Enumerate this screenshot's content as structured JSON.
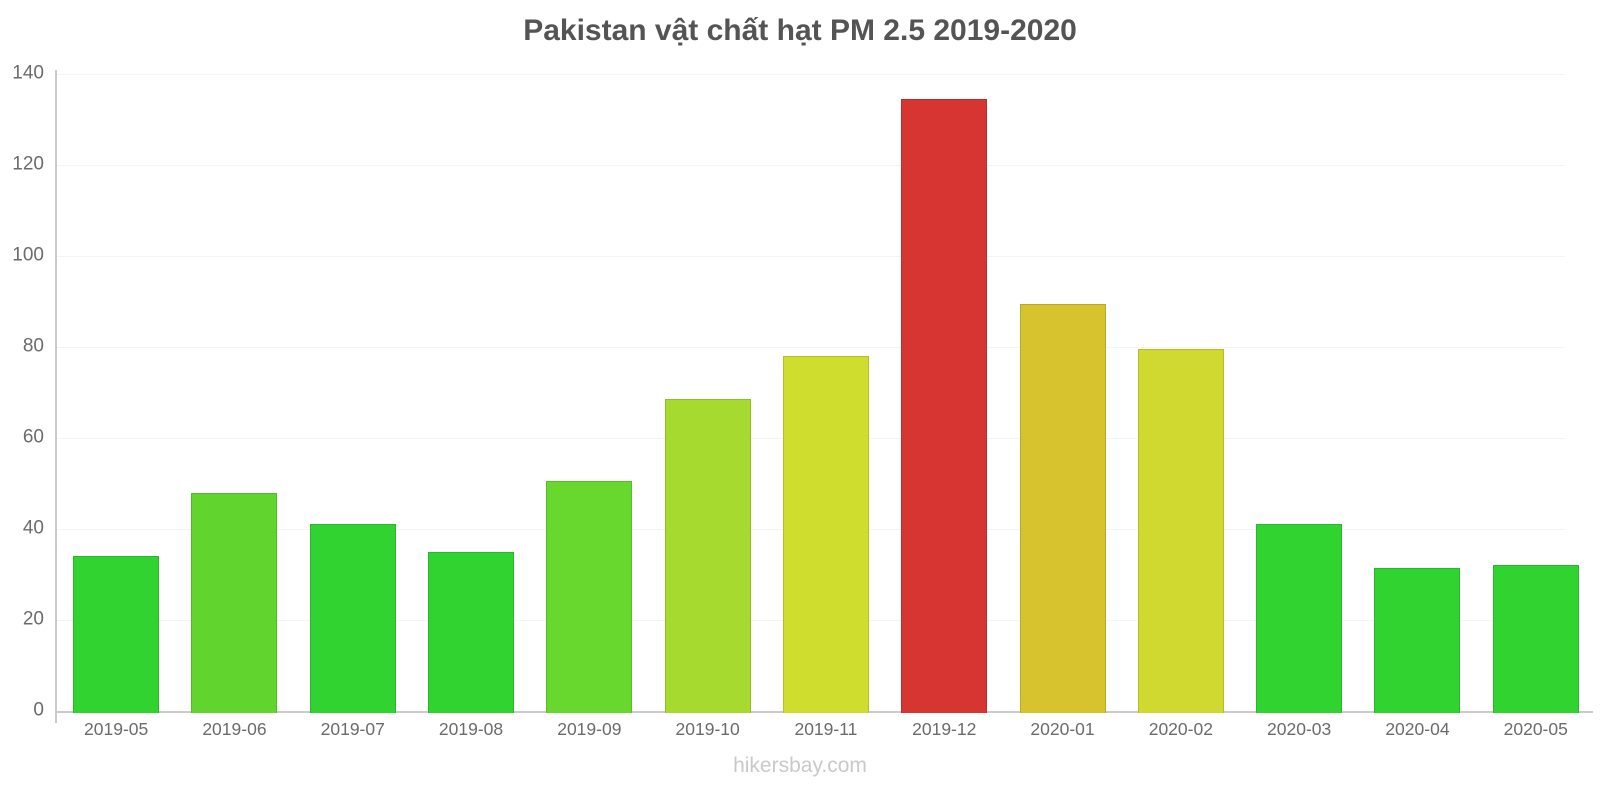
{
  "page": {
    "title": "Pakistan vật chất hạt PM 2.5 2019-2020",
    "watermark": "hikersbay.com"
  },
  "chart_data": {
    "type": "bar",
    "title": "Pakistan vật chất hạt PM 2.5 2019-2020",
    "categories": [
      "2019-05",
      "2019-06",
      "2019-07",
      "2019-08",
      "2019-09",
      "2019-10",
      "2019-11",
      "2019-12",
      "2020-01",
      "2020-02",
      "2020-03",
      "2020-04",
      "2020-05"
    ],
    "values": [
      34,
      48,
      41,
      35,
      50.5,
      68.5,
      78,
      134.5,
      89.5,
      79.5,
      41,
      31.5,
      32
    ],
    "bar_colors": [
      "#31d331",
      "#61d52e",
      "#31d331",
      "#31d331",
      "#68d72e",
      "#a6da2e",
      "#cedd2e",
      "#d63532",
      "#d6c32d",
      "#cfd930",
      "#31d331",
      "#31d331",
      "#31d331"
    ],
    "xlabel": "",
    "ylabel": "",
    "ylim": [
      0,
      140
    ],
    "yticks": [
      0,
      20,
      40,
      60,
      80,
      100,
      120,
      140
    ],
    "grid": "horizontal",
    "legend": "none",
    "style_colors": {
      "axis": "#cbcbcb",
      "grid": "#f4f4f4",
      "tick_text": "#6b6b6b",
      "title_text": "#545454",
      "watermark_text": "#c9c9c9"
    }
  }
}
